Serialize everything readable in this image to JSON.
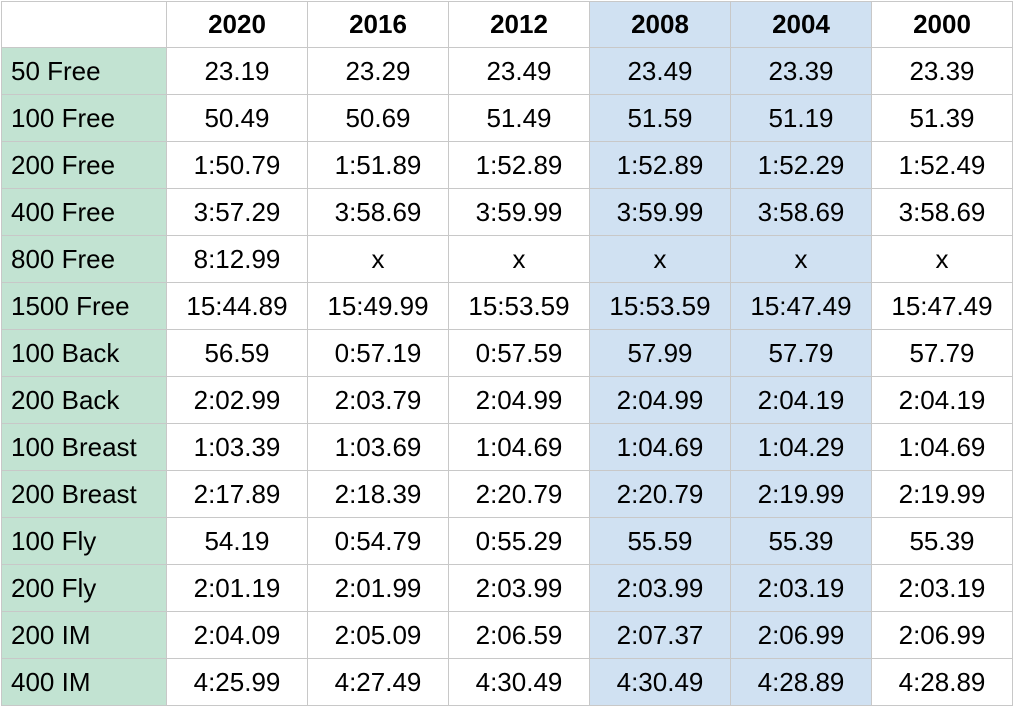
{
  "table": {
    "columns": [
      "2020",
      "2016",
      "2012",
      "2008",
      "2004",
      "2000"
    ],
    "rows": [
      {
        "label": "50 Free",
        "cells": [
          "23.19",
          "23.29",
          "23.49",
          "23.49",
          "23.39",
          "23.39"
        ]
      },
      {
        "label": "100 Free",
        "cells": [
          "50.49",
          "50.69",
          "51.49",
          "51.59",
          "51.19",
          "51.39"
        ]
      },
      {
        "label": "200 Free",
        "cells": [
          "1:50.79",
          "1:51.89",
          "1:52.89",
          "1:52.89",
          "1:52.29",
          "1:52.49"
        ]
      },
      {
        "label": "400 Free",
        "cells": [
          "3:57.29",
          "3:58.69",
          "3:59.99",
          "3:59.99",
          "3:58.69",
          "3:58.69"
        ]
      },
      {
        "label": "800 Free",
        "cells": [
          "8:12.99",
          "x",
          "x",
          "x",
          "x",
          "x"
        ]
      },
      {
        "label": "1500 Free",
        "cells": [
          "15:44.89",
          "15:49.99",
          "15:53.59",
          "15:53.59",
          "15:47.49",
          "15:47.49"
        ]
      },
      {
        "label": "100 Back",
        "cells": [
          "56.59",
          "0:57.19",
          "0:57.59",
          "57.99",
          "57.79",
          "57.79"
        ]
      },
      {
        "label": "200 Back",
        "cells": [
          "2:02.99",
          "2:03.79",
          "2:04.99",
          "2:04.99",
          "2:04.19",
          "2:04.19"
        ]
      },
      {
        "label": "100 Breast",
        "cells": [
          "1:03.39",
          "1:03.69",
          "1:04.69",
          "1:04.69",
          "1:04.29",
          "1:04.69"
        ]
      },
      {
        "label": "200 Breast",
        "cells": [
          "2:17.89",
          "2:18.39",
          "2:20.79",
          "2:20.79",
          "2:19.99",
          "2:19.99"
        ]
      },
      {
        "label": "100 Fly",
        "cells": [
          "54.19",
          "0:54.79",
          "0:55.29",
          "55.59",
          "55.39",
          "55.39"
        ]
      },
      {
        "label": "200 Fly",
        "cells": [
          "2:01.19",
          "2:01.99",
          "2:03.99",
          "2:03.99",
          "2:03.19",
          "2:03.19"
        ]
      },
      {
        "label": "200 IM",
        "cells": [
          "2:04.09",
          "2:05.09",
          "2:06.59",
          "2:07.37",
          "2:06.99",
          "2:06.99"
        ]
      },
      {
        "label": "400 IM",
        "cells": [
          "4:25.99",
          "4:27.49",
          "4:30.49",
          "4:30.49",
          "4:28.89",
          "4:28.89"
        ]
      }
    ]
  }
}
